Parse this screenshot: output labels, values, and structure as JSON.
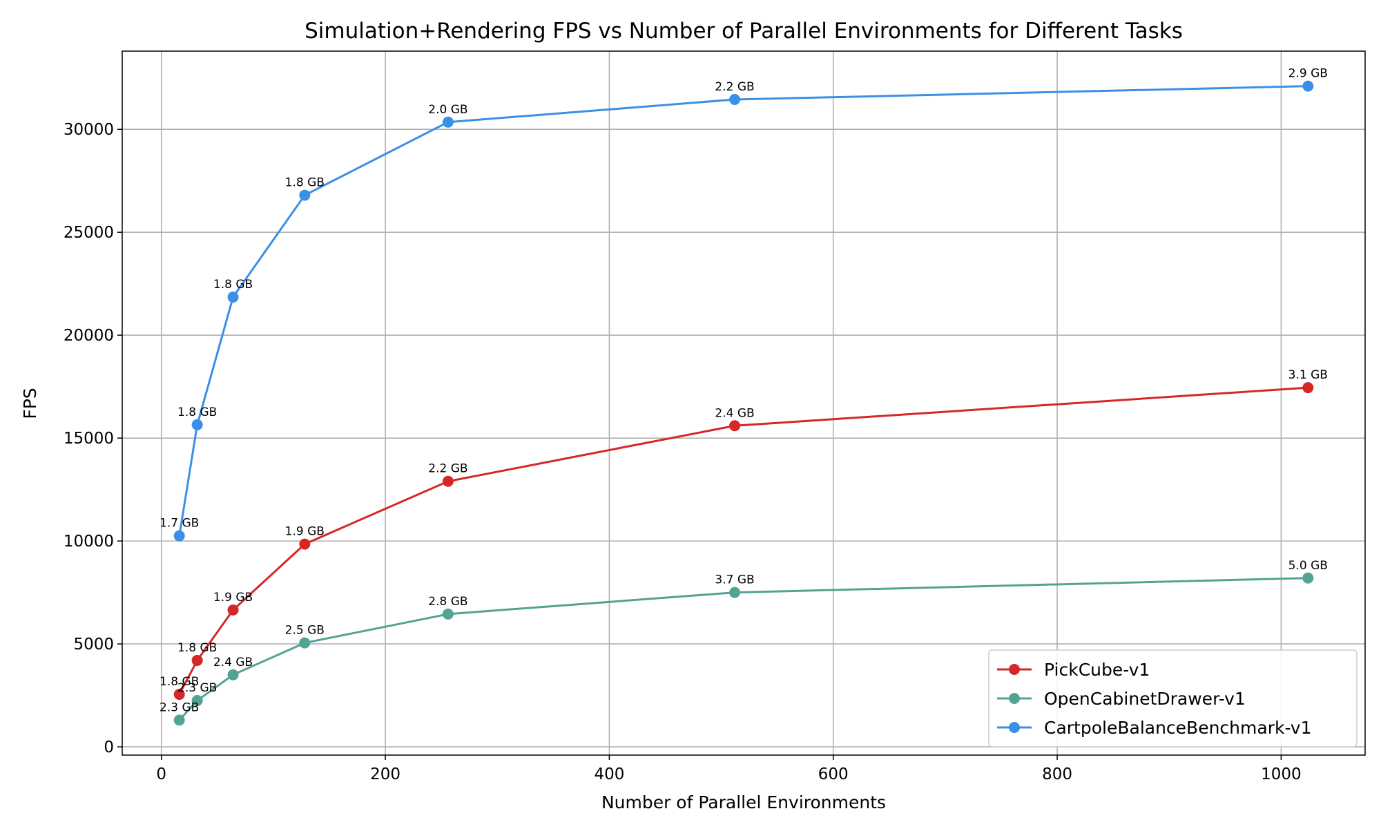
{
  "chart_data": {
    "type": "line",
    "title": "Simulation+Rendering FPS vs Number of Parallel Environments for Different Tasks",
    "xlabel": "Number of Parallel Environments",
    "ylabel": "FPS",
    "xlim": [
      -35,
      1075
    ],
    "ylim": [
      -400,
      33800
    ],
    "xticks": [
      0,
      200,
      400,
      600,
      800,
      1000
    ],
    "yticks": [
      0,
      5000,
      10000,
      15000,
      20000,
      25000,
      30000
    ],
    "grid": true,
    "legend_position": "lower-right",
    "x": [
      16,
      32,
      64,
      128,
      256,
      512,
      1024
    ],
    "series": [
      {
        "name": "PickCube-v1",
        "color": "#d62728",
        "values": [
          2550,
          4200,
          6650,
          9850,
          12900,
          15600,
          17450
        ],
        "labels": [
          "1.8 GB",
          "1.8 GB",
          "1.9 GB",
          "1.9 GB",
          "2.2 GB",
          "2.4 GB",
          "3.1 GB"
        ]
      },
      {
        "name": "OpenCabinetDrawer-v1",
        "color": "#52a394",
        "values": [
          1300,
          2250,
          3500,
          5050,
          6450,
          7500,
          8200
        ],
        "labels": [
          "2.3 GB",
          "2.3 GB",
          "2.4 GB",
          "2.5 GB",
          "2.8 GB",
          "3.7 GB",
          "5.0 GB"
        ]
      },
      {
        "name": "CartpoleBalanceBenchmark-v1",
        "color": "#3c8fe6",
        "values": [
          10250,
          15650,
          21850,
          26800,
          30350,
          31450,
          32100
        ],
        "labels": [
          "1.7 GB",
          "1.8 GB",
          "1.8 GB",
          "1.8 GB",
          "2.0 GB",
          "2.2 GB",
          "2.9 GB"
        ]
      }
    ]
  }
}
